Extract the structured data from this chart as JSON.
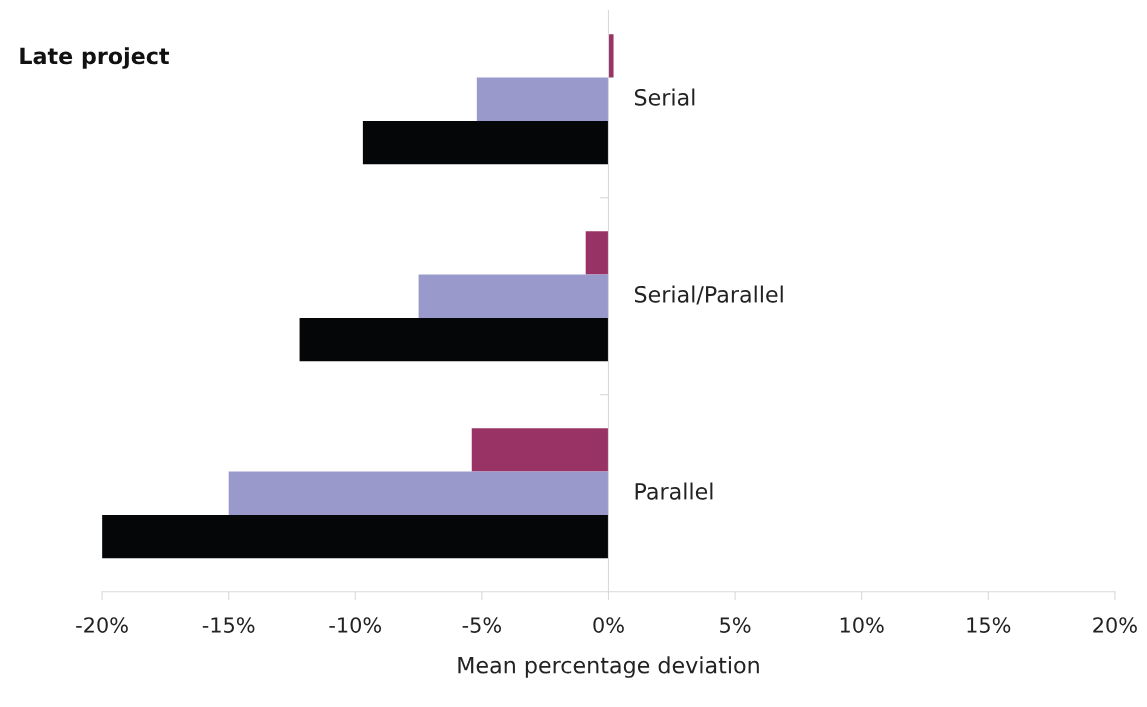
{
  "chart_data": {
    "type": "bar",
    "orientation": "horizontal",
    "title": "Late project",
    "xlabel": "Mean percentage deviation",
    "categories": [
      "Serial",
      "Serial/Parallel",
      "Parallel"
    ],
    "series": [
      {
        "color": "#993366",
        "values": [
          0.2,
          -0.9,
          -5.4
        ]
      },
      {
        "color": "#9999cc",
        "values": [
          -5.2,
          -7.5,
          -15.0
        ]
      },
      {
        "color": "#050608",
        "values": [
          -9.7,
          -12.2,
          -20.0
        ]
      }
    ],
    "xlim": [
      -20,
      20
    ],
    "xticks": [
      {
        "value": -20,
        "label": "-20%"
      },
      {
        "value": -15,
        "label": "-15%"
      },
      {
        "value": -10,
        "label": "-10%"
      },
      {
        "value": -5,
        "label": "-5%"
      },
      {
        "value": 0,
        "label": "0%"
      },
      {
        "value": 5,
        "label": "5%"
      },
      {
        "value": 10,
        "label": "10%"
      },
      {
        "value": 15,
        "label": "15%"
      },
      {
        "value": 20,
        "label": "20%"
      }
    ],
    "grid": false
  }
}
